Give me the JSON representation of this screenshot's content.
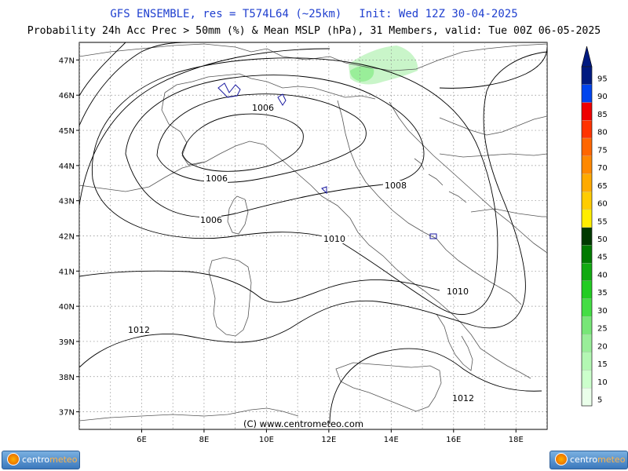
{
  "header": {
    "model_line": "GFS ENSEMBLE, res = T574L64 (~25km)",
    "init_line": "Init: Wed 12Z 30-04-2025",
    "product_line": "Probability 24h Acc Prec > 50mm (%) & Mean MSLP (hPa), 31 Members, valid: Tue 00Z 06-05-2025"
  },
  "map": {
    "lon_range": [
      4.0,
      19.0
    ],
    "lat_range": [
      36.5,
      47.5
    ],
    "lat_ticks": [
      "37N",
      "38N",
      "39N",
      "40N",
      "41N",
      "42N",
      "43N",
      "44N",
      "45N",
      "46N",
      "47N"
    ],
    "lon_ticks": [
      "6E",
      "8E",
      "10E",
      "12E",
      "14E",
      "16E",
      "18E"
    ],
    "grid": true,
    "copyright": "(C) www.centrometeo.com",
    "isobar_labels": [
      "1006",
      "1006",
      "1006",
      "1008",
      "1010",
      "1010",
      "1012",
      "1012"
    ],
    "land_color": "#555555",
    "isobar_color": "#000000",
    "grid_color": "#888888"
  },
  "legend": {
    "levels": [
      "5",
      "10",
      "15",
      "20",
      "25",
      "30",
      "35",
      "40",
      "45",
      "50",
      "55",
      "60",
      "65",
      "70",
      "75",
      "80",
      "85",
      "90",
      "95"
    ],
    "colors": [
      "#eaffea",
      "#ccffcc",
      "#b3f7b3",
      "#99ee99",
      "#77e677",
      "#44dd44",
      "#22cc22",
      "#11aa11",
      "#007a00",
      "#003a00",
      "#ffee00",
      "#ffcc00",
      "#ffaa00",
      "#ff8800",
      "#ff6600",
      "#ff3300",
      "#ee0000",
      "#0044ee",
      "#001a80"
    ]
  },
  "logos": {
    "left": {
      "prefix": "centro",
      "suffix": "meteo"
    },
    "right": {
      "prefix": "centro",
      "suffix": "meteo"
    }
  }
}
